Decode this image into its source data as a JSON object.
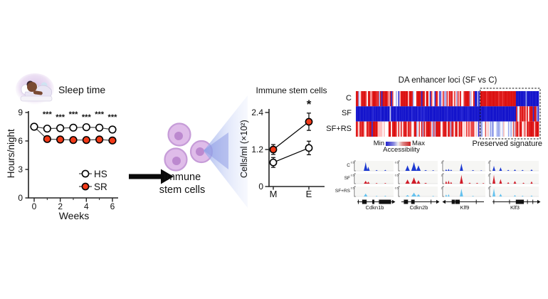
{
  "labels": {
    "cells_line1": "Immune",
    "cells_line2": "stem cells"
  },
  "icons": {
    "sleep_icon": "sleeping-person-icon",
    "flow_arrow": "right-arrow-icon",
    "magnify_cone": "zoom-cone-icon"
  },
  "colors": {
    "sr_red": "#f23a18",
    "heat_red": "#dc1010",
    "heat_blue": "#1414cc",
    "track_c_blue": "#1c39d1",
    "track_sf_red": "#d01c28",
    "track_sfrs_lightblue": "#63c1ee",
    "cell_fill": "#dfbce9",
    "cell_nucleus": "#bc89cf",
    "cone_blue": "#8fa4e8"
  },
  "chart_data": [
    {
      "id": "sleep-time",
      "type": "line",
      "title": "Sleep time",
      "xlabel": "Weeks",
      "ylabel": "Hours/night",
      "ylim": [
        0,
        9
      ],
      "yticks": [
        0,
        3,
        6,
        9
      ],
      "xticks": [
        0,
        2,
        4,
        6
      ],
      "minor_xticks": [
        1,
        3,
        5
      ],
      "x": [
        0,
        1,
        2,
        3,
        4,
        5,
        6
      ],
      "series": [
        {
          "name": "HS",
          "marker": "open",
          "fill": "#ffffff",
          "values": [
            7.5,
            7.3,
            7.35,
            7.4,
            7.45,
            7.4,
            7.2
          ]
        },
        {
          "name": "SR",
          "marker": "filled",
          "fill": "#f23a18",
          "values": [
            7.5,
            6.2,
            6.15,
            6.1,
            6.1,
            6.15,
            6.05
          ],
          "marker_from_index": 1
        }
      ],
      "significance": {
        "symbol": "***",
        "at_x": [
          1,
          2,
          3,
          4,
          5,
          6
        ]
      },
      "legend_position": "bottom-right"
    },
    {
      "id": "immune-stem-cells",
      "type": "line",
      "title": "Immune stem cells",
      "ylabel": "Cells/ml (×10²)",
      "categories": [
        "M",
        "E"
      ],
      "ylim": [
        0,
        2.55
      ],
      "yticks": [
        0,
        1.2,
        2.4
      ],
      "series": [
        {
          "name": "SR",
          "marker": "filled",
          "fill": "#f23a18",
          "values": [
            1.2,
            2.1
          ],
          "errors": [
            0.16,
            0.28
          ]
        },
        {
          "name": "HS",
          "marker": "open",
          "fill": "#ffffff",
          "values": [
            0.78,
            1.25
          ],
          "errors": [
            0.16,
            0.22
          ]
        }
      ],
      "significance": {
        "symbol": "*",
        "at_category": "E"
      }
    },
    {
      "id": "da-enhancer-heatmap",
      "type": "heatmap",
      "title": "DA enhancer loci (SF vs C)",
      "rows": [
        "C",
        "SF",
        "SF+RS"
      ],
      "colorbar": {
        "min": "Min",
        "max": "Max",
        "label": "Accessibility"
      },
      "preserved_box": {
        "label": "Preserved signature",
        "start_frac": 0.68,
        "end_frac": 1.0,
        "inner_split_frac": 0.875
      },
      "row_segments": [
        {
          "row": "C",
          "segments": [
            [
              "red-stripes",
              0.65
            ],
            [
              "blue-solid",
              0.68
            ],
            [
              "red-solid",
              0.875
            ],
            [
              "blue-light-stripes",
              1.0
            ]
          ]
        },
        {
          "row": "SF",
          "segments": [
            [
              "blue-solid",
              0.875
            ],
            [
              "red-stripes",
              1.0
            ]
          ]
        },
        {
          "row": "SF+RS",
          "segments": [
            [
              "red-stripes",
              0.68
            ],
            [
              "pale-blue-stripes",
              0.875
            ],
            [
              "red-stripes",
              1.0
            ]
          ]
        }
      ]
    },
    {
      "id": "genome-tracks",
      "type": "genome-tracks",
      "conditions": [
        {
          "name": "C",
          "color": "#1c39d1"
        },
        {
          "name": "SF",
          "color": "#d01c28"
        },
        {
          "name": "SF+RS",
          "color": "#63c1ee"
        }
      ],
      "genes": [
        {
          "name": "Cdkn1b",
          "scale": "0.5",
          "peaks": {
            "C": [
              [
                0.26,
                0.95,
                0.05
              ],
              [
                0.33,
                0.45,
                0.04
              ],
              [
                0.55,
                0.1,
                0.03
              ],
              [
                0.78,
                0.12,
                0.03
              ]
            ],
            "SF": [
              [
                0.26,
                0.32,
                0.05
              ],
              [
                0.33,
                0.22,
                0.04
              ],
              [
                0.55,
                0.08,
                0.03
              ],
              [
                0.78,
                0.08,
                0.03
              ]
            ],
            "SF+RS": [
              [
                0.26,
                0.33,
                0.05
              ],
              [
                0.55,
                0.08,
                0.03
              ],
              [
                0.78,
                0.1,
                0.03
              ]
            ]
          },
          "model": {
            "arrow": "right",
            "ticks": [
              0.03,
              0.45
            ],
            "boxes": [
              [
                0.14,
                0.27
              ],
              [
                0.43,
                0.49
              ],
              [
                0.62,
                0.97
              ]
            ]
          }
        },
        {
          "name": "Cdkn2b",
          "scale": "0.5",
          "peaks": {
            "C": [
              [
                0.2,
                0.6,
                0.06
              ],
              [
                0.37,
                0.95,
                0.07
              ],
              [
                0.49,
                0.6,
                0.06
              ],
              [
                0.68,
                0.1,
                0.04
              ],
              [
                0.88,
                0.08,
                0.03
              ]
            ],
            "SF": [
              [
                0.2,
                0.45,
                0.06
              ],
              [
                0.37,
                0.68,
                0.07
              ],
              [
                0.49,
                0.38,
                0.05
              ],
              [
                0.68,
                0.1,
                0.04
              ]
            ],
            "SF+RS": [
              [
                0.2,
                0.16,
                0.05
              ],
              [
                0.37,
                0.42,
                0.07
              ],
              [
                0.49,
                0.26,
                0.05
              ],
              [
                0.88,
                0.08,
                0.03
              ]
            ]
          },
          "model": {
            "arrow": "right",
            "ticks": [
              0.85
            ],
            "boxes": [
              [
                0.07,
                0.19
              ],
              [
                0.28,
                0.38
              ]
            ]
          }
        },
        {
          "name": "Klf9",
          "scale": "2",
          "peaks": {
            "C": [
              [
                0.05,
                0.18,
                0.025
              ],
              [
                0.11,
                0.22,
                0.025
              ],
              [
                0.17,
                0.14,
                0.025
              ],
              [
                0.42,
                0.8,
                0.04
              ],
              [
                0.7,
                0.1,
                0.03
              ],
              [
                0.9,
                0.06,
                0.025
              ]
            ],
            "SF": [
              [
                0.05,
                0.3,
                0.025
              ],
              [
                0.11,
                0.36,
                0.025
              ],
              [
                0.17,
                0.2,
                0.025
              ],
              [
                0.42,
                0.95,
                0.04
              ],
              [
                0.62,
                0.12,
                0.03
              ],
              [
                0.8,
                0.1,
                0.03
              ],
              [
                0.95,
                0.08,
                0.025
              ]
            ],
            "SF+RS": [
              [
                0.05,
                0.22,
                0.025
              ],
              [
                0.11,
                0.26,
                0.025
              ],
              [
                0.42,
                0.85,
                0.04
              ],
              [
                0.7,
                0.08,
                0.03
              ]
            ]
          },
          "model": {
            "arrow": "left",
            "ticks": [
              0.8
            ],
            "boxes": [
              [
                0.16,
                0.24
              ],
              [
                0.25,
                0.37
              ]
            ]
          }
        },
        {
          "name": "Klf3",
          "scale": "2",
          "peaks": {
            "C": [
              [
                0.06,
                0.55,
                0.03
              ],
              [
                0.2,
                0.38,
                0.03
              ],
              [
                0.36,
                0.12,
                0.025
              ],
              [
                0.5,
                0.16,
                0.025
              ],
              [
                0.66,
                0.12,
                0.025
              ],
              [
                0.85,
                0.16,
                0.025
              ]
            ],
            "SF": [
              [
                0.06,
                0.95,
                0.03
              ],
              [
                0.2,
                0.5,
                0.03
              ],
              [
                0.36,
                0.16,
                0.025
              ],
              [
                0.5,
                0.3,
                0.03
              ],
              [
                0.68,
                0.12,
                0.025
              ],
              [
                0.85,
                0.26,
                0.025
              ]
            ],
            "SF+RS": [
              [
                0.06,
                0.9,
                0.03
              ],
              [
                0.2,
                0.3,
                0.03
              ],
              [
                0.5,
                0.16,
                0.025
              ],
              [
                0.66,
                0.1,
                0.025
              ],
              [
                0.85,
                0.12,
                0.025
              ]
            ]
          },
          "model": {
            "arrow": "right",
            "ticks": [
              0.03,
              0.38,
              0.78,
              0.9
            ],
            "boxes": [
              [
                0.52,
                0.7
              ]
            ]
          }
        }
      ]
    }
  ]
}
